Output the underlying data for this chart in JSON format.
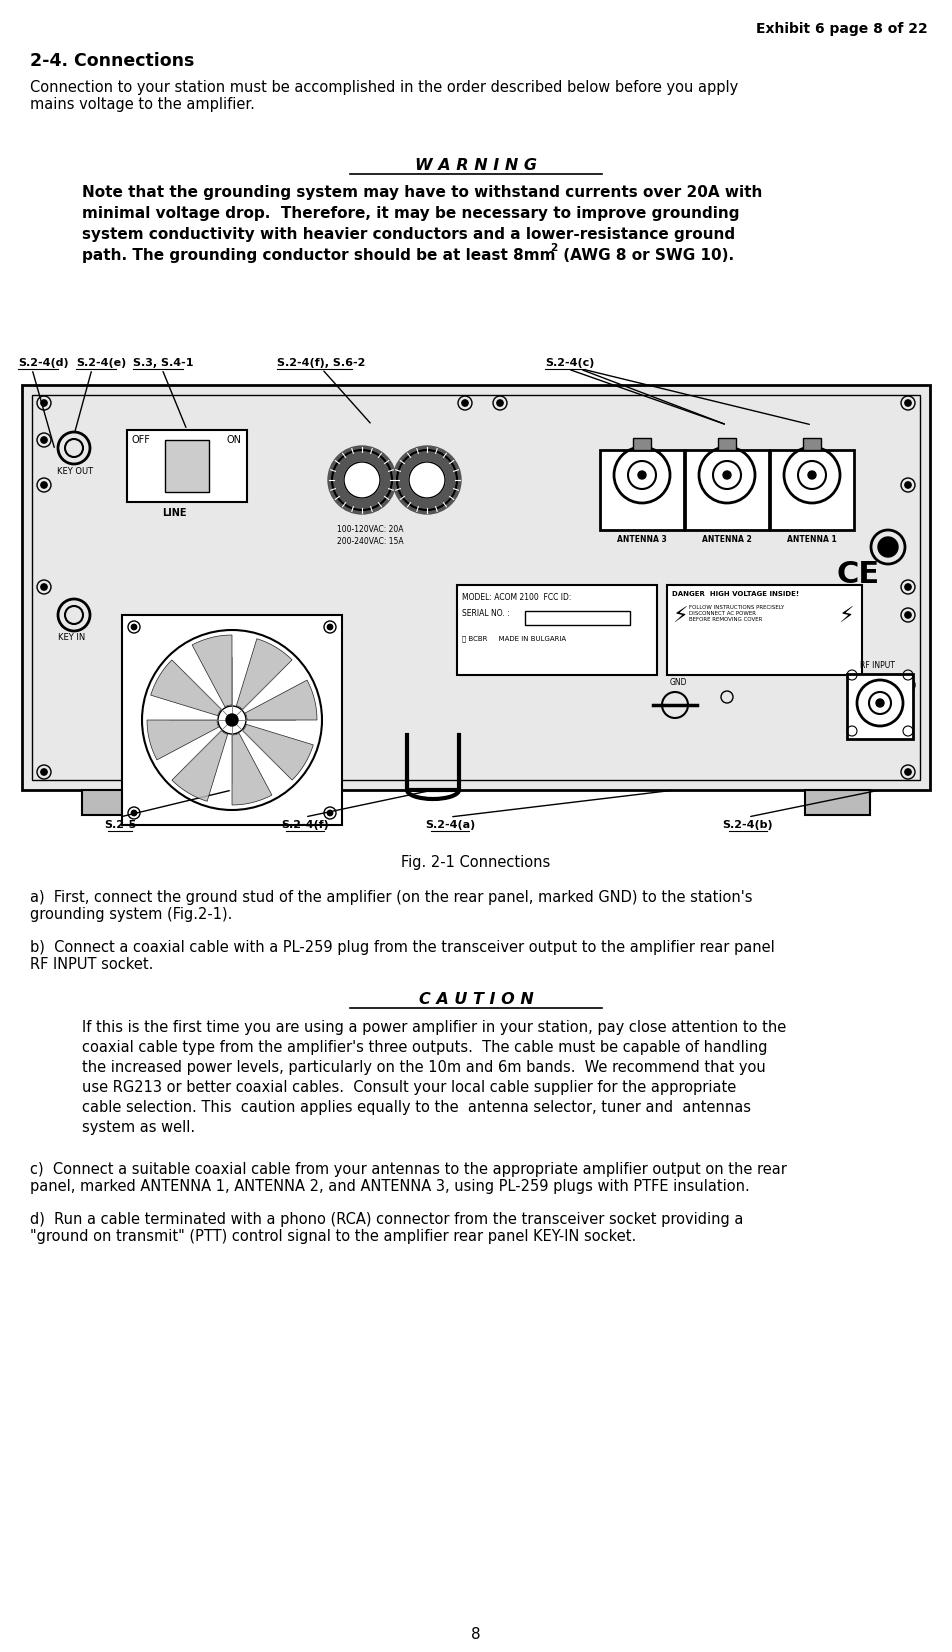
{
  "header": "Exhibit 6 page 8 of 22",
  "section_title": "2-4. Connections",
  "intro_text": "Connection to your station must be accomplished in the order described below before you apply\nmains voltage to the amplifier.",
  "warning_title": "W A R N I N G",
  "warning_lines": [
    "Note that the grounding system may have to withstand currents over 20A with",
    "minimal voltage drop.  Therefore, it may be necessary to improve grounding",
    "system conductivity with heavier conductors and a lower-resistance ground",
    "path. The grounding conductor should be at least 8mm"
  ],
  "warning_end": " (AWG 8 or SWG 10).",
  "fig_caption": "Fig. 2-1 Connections",
  "para_a": "a)  First, connect the ground stud of the amplifier (on the rear panel, marked GND) to the station's\ngrounding system (Fig.2-1).",
  "para_b": "b)  Connect a coaxial cable with a PL-259 plug from the transceiver output to the amplifier rear panel\nRF INPUT socket.",
  "caution_title": "C A U T I O N",
  "caution_lines": [
    "If this is the first time you are using a power amplifier in your station, pay close attention to the",
    "coaxial cable type from the amplifier's three outputs.  The cable must be capable of handling",
    "the increased power levels, particularly on the 10m and 6m bands.  We recommend that you",
    "use RG213 or better coaxial cables.  Consult your local cable supplier for the appropriate",
    "cable selection. This  caution applies equally to the  antenna selector, tuner and  antennas",
    "system as well."
  ],
  "para_c": "c)  Connect a suitable coaxial cable from your antennas to the appropriate amplifier output on the rear\npanel, marked ANTENNA 1, ANTENNA 2, and ANTENNA 3, using PL-259 plugs with PTFE insulation.",
  "para_d": "d)  Run a cable terminated with a phono (RCA) connector from the transceiver socket providing a\n\"ground on transmit\" (PTT) control signal to the amplifier rear panel KEY-IN socket.",
  "page_number": "8",
  "bg_color": "#ffffff"
}
